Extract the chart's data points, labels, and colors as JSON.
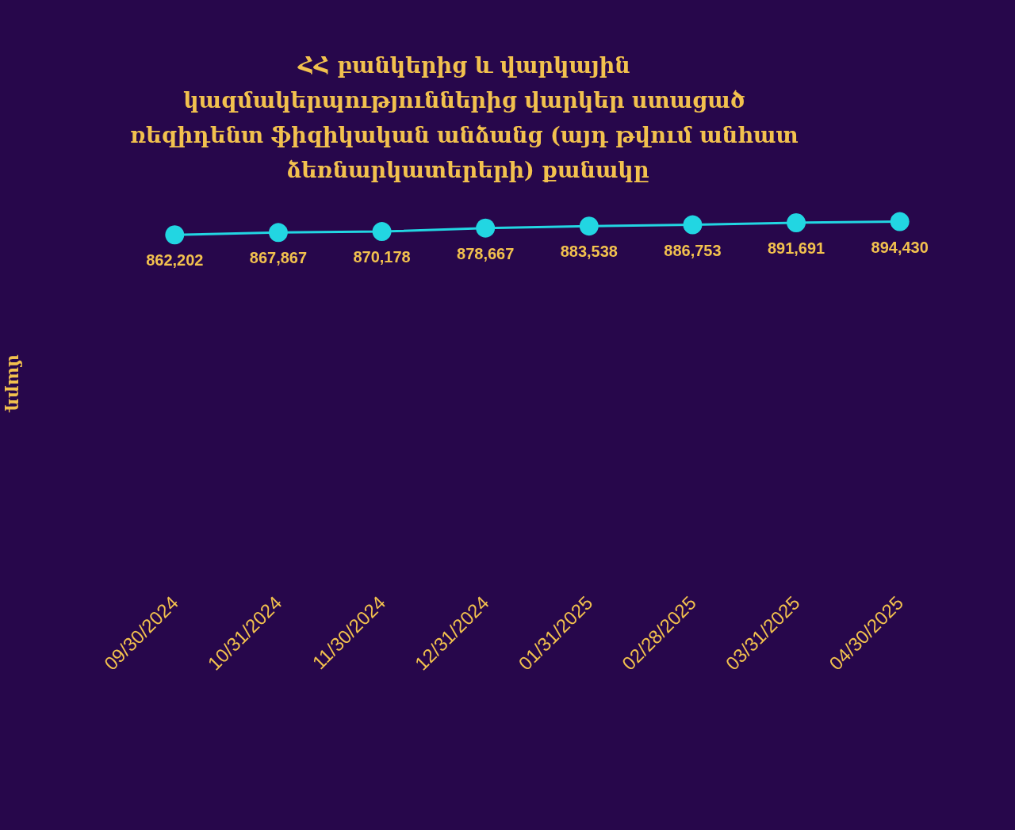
{
  "chart_data": {
    "type": "line",
    "title": "ՀՀ բանկերից և վարկային կազմակերպություններից վարկեր ստացած ռեզիդենտ ֆիզիկական անձանց (այդ թվում անհատ ձեռնարկատերերի) քանակը",
    "ylabel": "մարդ",
    "categories": [
      "09/30/2024",
      "10/31/2024",
      "11/30/2024",
      "12/31/2024",
      "01/31/2025",
      "02/28/2025",
      "03/31/2025",
      "04/30/2025"
    ],
    "series": [
      {
        "color": "#22d6e2",
        "values": [
          862202,
          867867,
          870178,
          878667,
          883538,
          886753,
          891691,
          894430
        ],
        "value_labels": [
          "862,202",
          "867,867",
          "870,178",
          "878,667",
          "883,538",
          "886,753",
          "891,691",
          "894,430"
        ]
      }
    ],
    "grid": false,
    "marker": "circle",
    "tick_labels": "x"
  }
}
